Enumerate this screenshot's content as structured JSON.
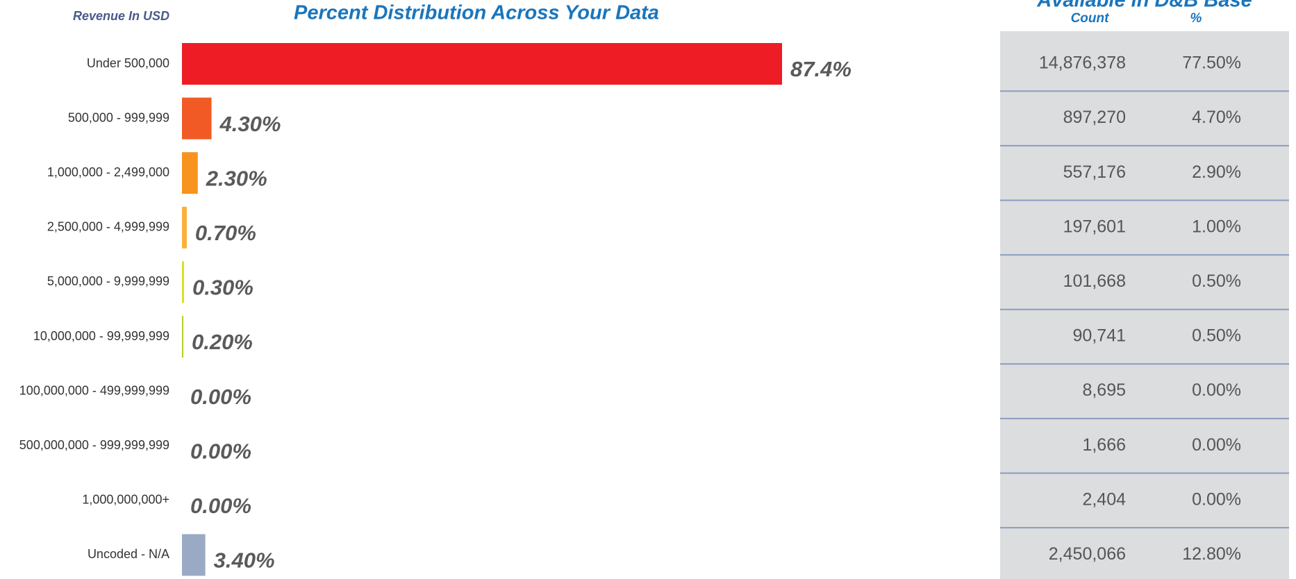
{
  "chart_data": {
    "type": "bar",
    "orientation": "horizontal",
    "title": "Percent Distribution Across Your Data",
    "axis_label": "Revenue In USD",
    "categories": [
      "Under 500,000",
      "500,000 - 999,999",
      "1,000,000 - 2,499,000",
      "2,500,000 - 4,999,999",
      "5,000,000 - 9,999,999",
      "10,000,000 - 99,999,999",
      "100,000,000 - 499,999,999",
      "500,000,000 - 999,999,999",
      "1,000,000,000+",
      "Uncoded - N/A"
    ],
    "values": [
      87.4,
      4.3,
      2.3,
      0.7,
      0.3,
      0.2,
      0,
      0,
      0,
      3.4
    ],
    "value_labels": [
      "87.4%",
      "4.30%",
      "2.30%",
      "0.70%",
      "0.30%",
      "0.20%",
      "0.00%",
      "0.00%",
      "0.00%",
      "3.40%"
    ],
    "colors": [
      "#ee1c25",
      "#f15a24",
      "#f7931e",
      "#fbb03b",
      "#d9e021",
      "#b5cc2b",
      "#999999",
      "#999999",
      "#999999",
      "#9aaac4"
    ]
  },
  "table": {
    "title": "Available in D&B Base",
    "columns": [
      "Count",
      "%"
    ],
    "rows": [
      [
        "14,876,378",
        "77.50%"
      ],
      [
        "897,270",
        "4.70%"
      ],
      [
        "557,176",
        "2.90%"
      ],
      [
        "197,601",
        "1.00%"
      ],
      [
        "101,668",
        "0.50%"
      ],
      [
        "90,741",
        "0.50%"
      ],
      [
        "8,695",
        "0.00%"
      ],
      [
        "1,666",
        "0.00%"
      ],
      [
        "2,404",
        "0.00%"
      ],
      [
        "2,450,066",
        "12.80%"
      ]
    ]
  }
}
